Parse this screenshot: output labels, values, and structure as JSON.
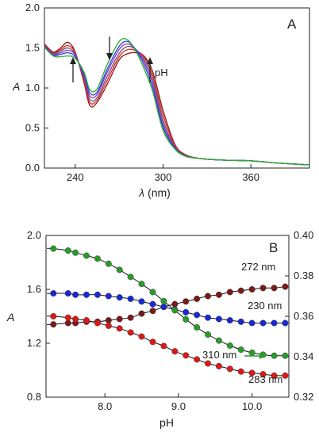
{
  "chart_data": [
    {
      "type": "line",
      "panel": "A",
      "xlabel_symbol": "λ",
      "xlabel_unit": "(nm)",
      "ylabel": "A",
      "xlim": [
        219,
        400
      ],
      "ylim": [
        0,
        2.0
      ],
      "x_ticks": [
        240,
        300,
        360
      ],
      "y_ticks": [
        0.0,
        0.5,
        1.0,
        1.5,
        2.0
      ],
      "y_tick_labels": [
        "0.0",
        "0.5",
        "1.0",
        "1.5",
        "2.0"
      ],
      "annotation": "pH",
      "series": [
        {
          "color": "#8b1a1a",
          "x": [
            219,
            225,
            230,
            235,
            240,
            246,
            250,
            255,
            262,
            270,
            276,
            282,
            287,
            293,
            300,
            308,
            315,
            325,
            340,
            360,
            380,
            400
          ],
          "y": [
            1.55,
            1.45,
            1.5,
            1.57,
            1.45,
            1.07,
            0.78,
            0.82,
            1.05,
            1.35,
            1.43,
            1.44,
            1.4,
            1.2,
            0.72,
            0.3,
            0.17,
            0.12,
            0.1,
            0.09,
            0.06,
            0.04
          ]
        },
        {
          "color": "#e0201a",
          "x": [
            219,
            225,
            230,
            235,
            240,
            246,
            250,
            255,
            262,
            270,
            276,
            282,
            287,
            293,
            300,
            308,
            315,
            325,
            340,
            360,
            380,
            400
          ],
          "y": [
            1.54,
            1.44,
            1.48,
            1.53,
            1.44,
            1.09,
            0.82,
            0.85,
            1.1,
            1.39,
            1.48,
            1.46,
            1.39,
            1.15,
            0.66,
            0.29,
            0.16,
            0.12,
            0.1,
            0.09,
            0.06,
            0.04
          ]
        },
        {
          "color": "#5a5a7a",
          "x": [
            219,
            225,
            230,
            235,
            240,
            246,
            250,
            255,
            262,
            270,
            276,
            282,
            287,
            293,
            300,
            308,
            315,
            325,
            340,
            360,
            380,
            400
          ],
          "y": [
            1.53,
            1.43,
            1.46,
            1.5,
            1.42,
            1.12,
            0.86,
            0.88,
            1.15,
            1.43,
            1.52,
            1.47,
            1.36,
            1.1,
            0.6,
            0.27,
            0.16,
            0.12,
            0.1,
            0.09,
            0.06,
            0.04
          ]
        },
        {
          "color": "#9b30c8",
          "x": [
            219,
            225,
            230,
            235,
            240,
            246,
            250,
            255,
            262,
            270,
            276,
            282,
            287,
            293,
            300,
            308,
            315,
            325,
            340,
            360,
            380,
            400
          ],
          "y": [
            1.53,
            1.42,
            1.44,
            1.47,
            1.41,
            1.14,
            0.9,
            0.92,
            1.2,
            1.48,
            1.55,
            1.47,
            1.33,
            1.05,
            0.55,
            0.26,
            0.15,
            0.12,
            0.1,
            0.09,
            0.06,
            0.04
          ]
        },
        {
          "color": "#2a3cd8",
          "x": [
            219,
            225,
            230,
            235,
            240,
            246,
            250,
            255,
            262,
            270,
            276,
            282,
            287,
            293,
            300,
            308,
            315,
            325,
            340,
            360,
            380,
            400
          ],
          "y": [
            1.52,
            1.41,
            1.42,
            1.44,
            1.39,
            1.17,
            0.94,
            0.95,
            1.24,
            1.52,
            1.58,
            1.46,
            1.29,
            1.0,
            0.51,
            0.25,
            0.15,
            0.12,
            0.1,
            0.09,
            0.06,
            0.04
          ]
        },
        {
          "color": "#26b026",
          "x": [
            219,
            225,
            230,
            235,
            240,
            246,
            250,
            255,
            262,
            270,
            276,
            282,
            287,
            293,
            300,
            308,
            315,
            325,
            340,
            360,
            380,
            400
          ],
          "y": [
            1.51,
            1.4,
            1.39,
            1.4,
            1.37,
            1.2,
            0.98,
            0.99,
            1.3,
            1.58,
            1.6,
            1.44,
            1.24,
            0.95,
            0.47,
            0.24,
            0.15,
            0.12,
            0.1,
            0.09,
            0.06,
            0.04
          ]
        }
      ]
    },
    {
      "type": "scatter",
      "panel": "B",
      "xlabel": "pH",
      "ylabel": "A",
      "xlim": [
        7.2,
        10.5
      ],
      "ylim": [
        0.8,
        2.0
      ],
      "ylim_right": [
        0.32,
        0.4
      ],
      "x_ticks": [
        8.0,
        9.0,
        10.0
      ],
      "x_tick_labels": [
        "8.0",
        "9.0",
        "10.0"
      ],
      "y_ticks": [
        0.8,
        1.2,
        1.6,
        2.0
      ],
      "y_tick_labels": [
        "0.8",
        "1.2",
        "1.6",
        "2.0"
      ],
      "y_ticks_right": [
        0.32,
        0.34,
        0.36,
        0.38,
        0.4
      ],
      "y_tick_labels_right": [
        "0.32",
        "0.34",
        "0.36",
        "0.38",
        "0.40"
      ],
      "series": [
        {
          "name": "272 nm",
          "color": "#7a1a1a",
          "axis": "left",
          "x": [
            7.3,
            7.5,
            7.6,
            7.75,
            7.9,
            8.05,
            8.2,
            8.35,
            8.5,
            8.65,
            8.8,
            8.95,
            9.1,
            9.25,
            9.4,
            9.55,
            9.7,
            9.85,
            10.0,
            10.15,
            10.3,
            10.45
          ],
          "y": [
            1.34,
            1.35,
            1.35,
            1.36,
            1.36,
            1.37,
            1.38,
            1.39,
            1.42,
            1.44,
            1.47,
            1.49,
            1.51,
            1.53,
            1.55,
            1.56,
            1.58,
            1.59,
            1.6,
            1.61,
            1.61,
            1.62
          ]
        },
        {
          "name": "230 nm",
          "color": "#1a28d0",
          "axis": "left",
          "x": [
            7.3,
            7.5,
            7.6,
            7.75,
            7.9,
            8.05,
            8.2,
            8.35,
            8.5,
            8.65,
            8.8,
            8.95,
            9.1,
            9.25,
            9.4,
            9.55,
            9.7,
            9.85,
            10.0,
            10.15,
            10.3,
            10.45
          ],
          "y": [
            1.57,
            1.57,
            1.56,
            1.56,
            1.56,
            1.55,
            1.54,
            1.53,
            1.51,
            1.49,
            1.47,
            1.45,
            1.43,
            1.41,
            1.39,
            1.38,
            1.37,
            1.36,
            1.35,
            1.35,
            1.35,
            1.35
          ]
        },
        {
          "name": "310 nm",
          "color": "#2a9a2a",
          "axis": "right",
          "x": [
            7.3,
            7.5,
            7.6,
            7.75,
            7.9,
            8.05,
            8.2,
            8.35,
            8.5,
            8.65,
            8.8,
            8.95,
            9.1,
            9.25,
            9.4,
            9.55,
            9.7,
            9.85,
            10.0,
            10.15,
            10.3,
            10.45
          ],
          "y": [
            0.3935,
            0.3925,
            0.3915,
            0.39,
            0.3885,
            0.386,
            0.383,
            0.3795,
            0.376,
            0.372,
            0.3675,
            0.363,
            0.3585,
            0.3545,
            0.351,
            0.348,
            0.3455,
            0.3435,
            0.342,
            0.341,
            0.3405,
            0.3405
          ]
        },
        {
          "name": "283 nm",
          "color": "#d81a1a",
          "axis": "left",
          "x": [
            7.3,
            7.5,
            7.6,
            7.75,
            7.9,
            8.05,
            8.2,
            8.35,
            8.5,
            8.65,
            8.8,
            8.95,
            9.1,
            9.25,
            9.4,
            9.55,
            9.7,
            9.85,
            10.0,
            10.15,
            10.3,
            10.45
          ],
          "y": [
            1.4,
            1.39,
            1.38,
            1.37,
            1.35,
            1.33,
            1.31,
            1.28,
            1.25,
            1.21,
            1.18,
            1.14,
            1.11,
            1.08,
            1.05,
            1.03,
            1.01,
            0.99,
            0.98,
            0.97,
            0.96,
            0.96
          ]
        }
      ]
    }
  ],
  "panelA": {
    "letter": "A",
    "annotation": "pH",
    "xlabel_symbol": "λ",
    "xlabel_unit": "(nm)",
    "ylabel": "A"
  },
  "panelB": {
    "letter": "B",
    "xlabel": "pH",
    "ylabel": "A",
    "label_272": "272 nm",
    "label_230": "230 nm",
    "label_310": "310 nm",
    "label_283": "283 nm"
  }
}
